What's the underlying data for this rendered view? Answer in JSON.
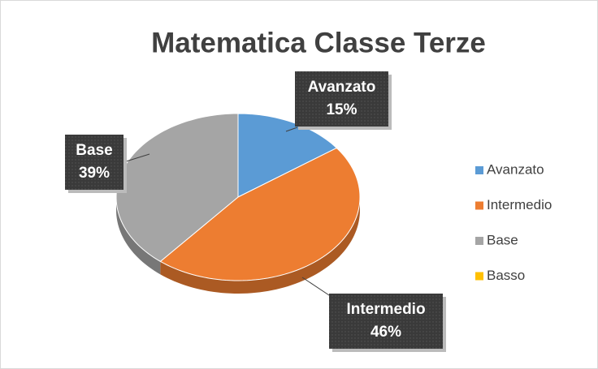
{
  "chart_data": {
    "type": "pie",
    "title": "Matematica Classe Terze",
    "categories": [
      "Avanzato",
      "Intermedio",
      "Base",
      "Basso"
    ],
    "values": [
      15,
      46,
      39,
      0
    ],
    "value_labels": [
      "15%",
      "46%",
      "39%",
      null
    ],
    "colors": [
      "#5b9bd5",
      "#ed7d31",
      "#a5a5a5",
      "#ffc000"
    ],
    "legend": "right"
  }
}
